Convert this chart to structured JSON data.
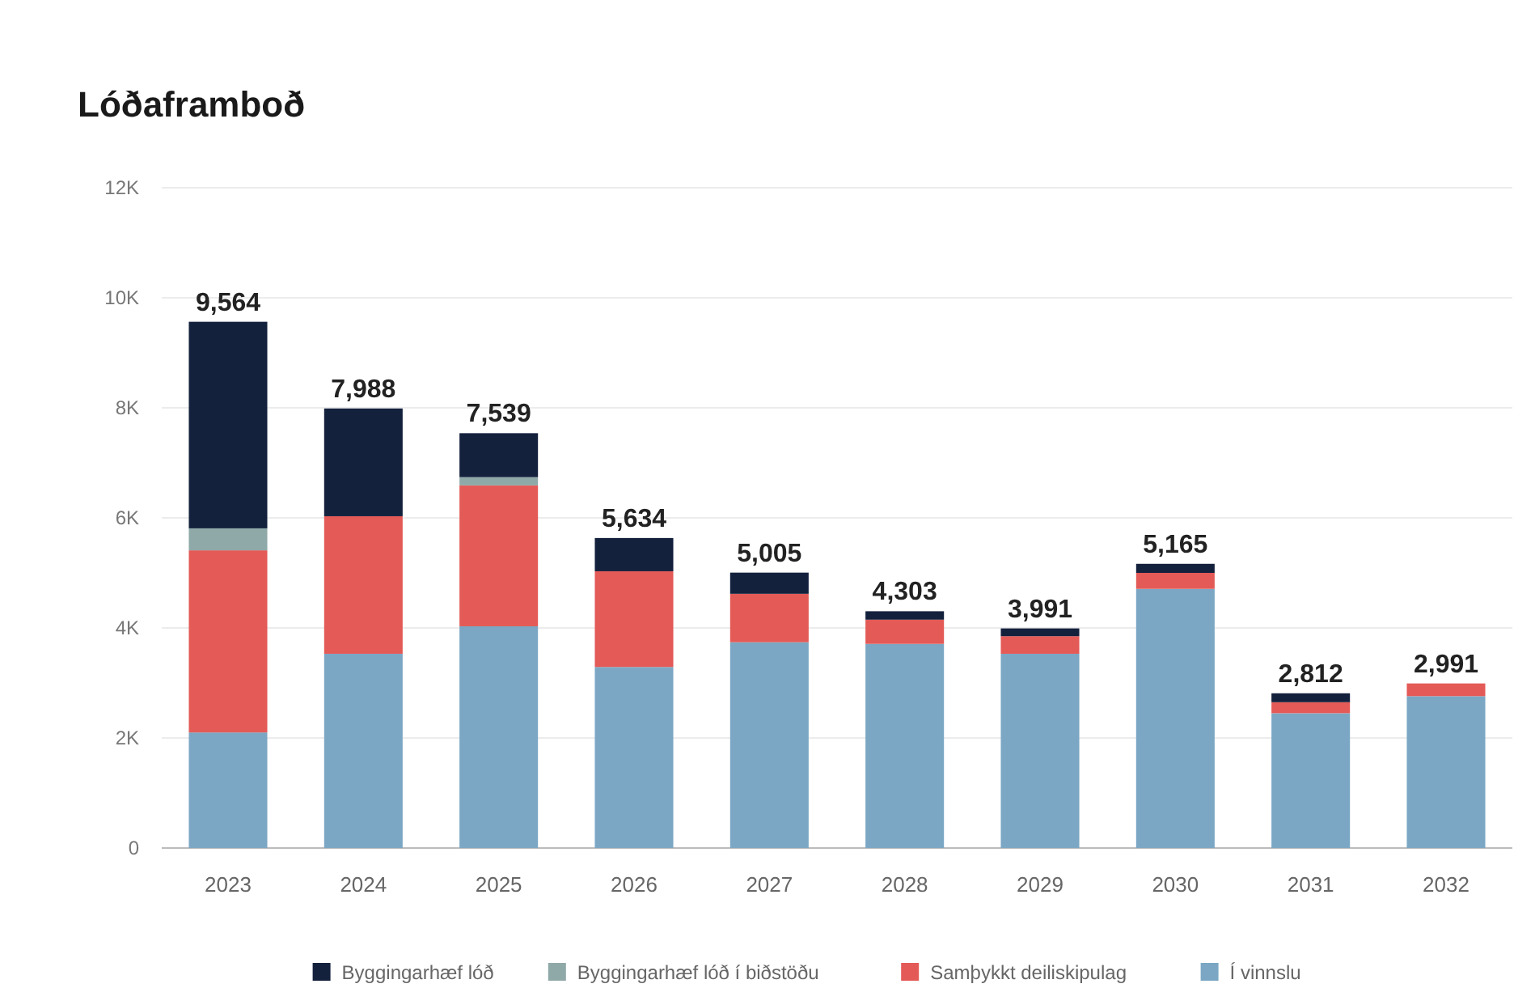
{
  "chart_data": {
    "type": "bar",
    "title": "Lóðaframboð",
    "stacked": true,
    "categories": [
      "2023",
      "2024",
      "2025",
      "2026",
      "2027",
      "2028",
      "2029",
      "2030",
      "2031",
      "2032"
    ],
    "series": [
      {
        "name": "Í vinnslu",
        "color": "#7ba7c4",
        "values": [
          2100,
          3530,
          4030,
          3290,
          3740,
          3710,
          3530,
          4710,
          2450,
          2760
        ]
      },
      {
        "name": "Samþykkt deiliskipulag",
        "color": "#e35a57",
        "values": [
          3310,
          2500,
          2560,
          1740,
          880,
          440,
          320,
          290,
          200,
          231
        ]
      },
      {
        "name": "Byggingarhæf lóð í biðstöðu",
        "color": "#8fa9a8",
        "values": [
          400,
          0,
          150,
          0,
          0,
          0,
          0,
          0,
          0,
          0
        ]
      },
      {
        "name": "Byggingarhæf lóð",
        "color": "#14213d",
        "values": [
          3754,
          1958,
          799,
          604,
          385,
          153,
          141,
          165,
          162,
          0
        ]
      }
    ],
    "totals": [
      "9,564",
      "7,988",
      "7,539",
      "5,634",
      "5,005",
      "4,303",
      "3,991",
      "5,165",
      "2,812",
      "2,991"
    ],
    "ylim": [
      0,
      12000
    ],
    "yticks": [
      0,
      {
        "value": 2000,
        "label": "2K"
      },
      {
        "value": 4000,
        "label": "4K"
      },
      {
        "value": 6000,
        "label": "6K"
      },
      {
        "value": 8000,
        "label": "8K"
      },
      {
        "value": 10000,
        "label": "10K"
      },
      {
        "value": 12000,
        "label": "12K"
      }
    ],
    "grid": "y",
    "legend": "bottom"
  }
}
